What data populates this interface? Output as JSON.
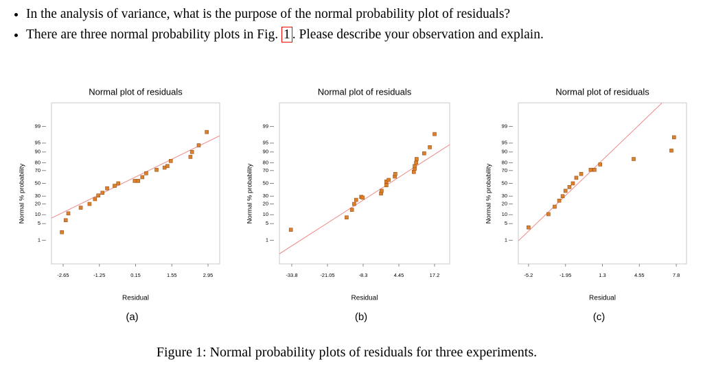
{
  "bullets": [
    "In the analysis of variance, what is the purpose of the normal probability plot of residuals?",
    {
      "before": "There are three normal probability plots in Fig.",
      "ref": "1",
      "after": ". Please describe your observation and explain."
    }
  ],
  "chart_data": [
    {
      "type": "scatter",
      "title": "Normal plot of residuals",
      "xlabel": "Residual",
      "ylabel": "Normal % probability",
      "subcaption": "(a)",
      "yscale": "probit",
      "xlim": [
        -3.1,
        3.4
      ],
      "xticks": [
        -2.65,
        -1.25,
        0.15,
        1.55,
        2.95
      ],
      "ylim": [
        0.05,
        99.95
      ],
      "yticks": [
        1,
        5,
        10,
        20,
        30,
        50,
        70,
        80,
        90,
        95,
        99
      ],
      "x": [
        -2.7,
        -2.55,
        -2.45,
        -1.97,
        -1.63,
        -1.42,
        -1.29,
        -1.13,
        -0.95,
        -0.66,
        -0.52,
        0.12,
        0.25,
        0.41,
        0.56,
        0.96,
        1.27,
        1.38,
        1.51,
        2.27,
        2.33,
        2.59,
        2.9
      ],
      "values": [
        2.3,
        6.6,
        11,
        16,
        20,
        26,
        31,
        35,
        42,
        46,
        50,
        54,
        54,
        60,
        66,
        71,
        74,
        76,
        82,
        86,
        90,
        94,
        98.2
      ],
      "color": "#d9822b",
      "fit_line": {
        "x": [
          -3.1,
          3.4
        ],
        "values": [
          7.8,
          97.4
        ],
        "color": "#ee8888"
      }
    },
    {
      "type": "scatter",
      "title": "Normal plot of residuals",
      "xlabel": "Residual",
      "ylabel": "Normal % probability",
      "subcaption": "(b)",
      "yscale": "probit",
      "xlim": [
        -38.2,
        22.6
      ],
      "xticks": [
        -33.8,
        -21.05,
        -8.3,
        4.45,
        17.2
      ],
      "ylim": [
        0.05,
        99.95
      ],
      "yticks": [
        1,
        5,
        10,
        20,
        30,
        50,
        70,
        80,
        90,
        95,
        99
      ],
      "x": [
        -34.1,
        -14.2,
        -12.3,
        -11.5,
        -10.8,
        -9.0,
        -8.5,
        -1.9,
        -1.7,
        0.0,
        0.0,
        0.8,
        3.0,
        3.2,
        9.8,
        10.1,
        10.1,
        10.6,
        10.8,
        13.5,
        15.5,
        17.2
      ],
      "values": [
        2.9,
        8.2,
        14,
        20,
        25,
        29,
        28,
        34,
        38,
        47,
        53,
        55.6,
        61,
        65,
        68,
        72.6,
        76,
        80,
        84,
        89,
        93,
        97.8
      ],
      "color": "#d9822b",
      "fit_line": {
        "x": [
          -38.2,
          22.6
        ],
        "values": [
          0.2,
          94.3
        ],
        "color": "#ee8888"
      }
    },
    {
      "type": "scatter",
      "title": "Normal plot of residuals",
      "xlabel": "Residual",
      "ylabel": "Normal % probability",
      "subcaption": "(c)",
      "yscale": "probit",
      "xlim": [
        -6.1,
        8.7
      ],
      "xticks": [
        -5.2,
        -1.95,
        1.3,
        4.55,
        7.8
      ],
      "ylim": [
        0.05,
        99.95
      ],
      "yticks": [
        1,
        5,
        10,
        20,
        30,
        50,
        70,
        80,
        90,
        95,
        99
      ],
      "x": [
        -5.2,
        -3.45,
        -2.9,
        -2.5,
        -2.2,
        -1.95,
        -1.6,
        -1.3,
        -1.0,
        -0.57,
        0.27,
        0.6,
        1.1,
        4.05,
        7.37,
        7.6
      ],
      "values": [
        3.6,
        10.4,
        17,
        24,
        30,
        38,
        44,
        50,
        59,
        65,
        71,
        71,
        78,
        84,
        91,
        97
      ],
      "color": "#d9822b",
      "fit_line": {
        "x": [
          -6.1,
          6.55
        ],
        "values": [
          0.94,
          99.95
        ],
        "color": "#ee8888"
      }
    }
  ],
  "caption": "Figure 1: Normal probability plots of residuals for three experiments."
}
